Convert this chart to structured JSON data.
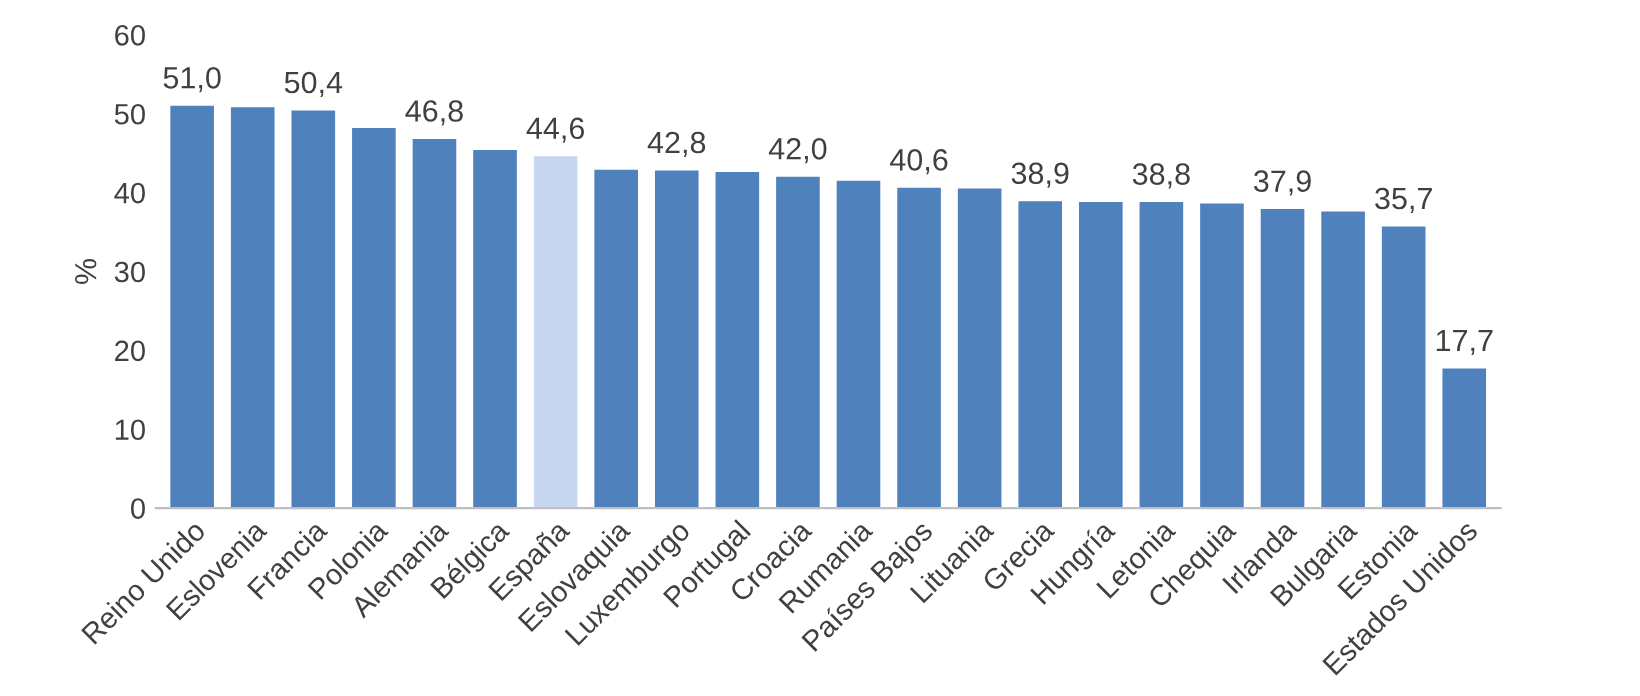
{
  "chart_data": {
    "type": "bar",
    "ylabel": "%",
    "categories": [
      "Reino Unido",
      "Eslovenia",
      "Francia",
      "Polonia",
      "Alemania",
      "Bélgica",
      "España",
      "Eslovaquia",
      "Luxemburgo",
      "Portugal",
      "Croacia",
      "Rumania",
      "Países Bajos",
      "Lituania",
      "Grecia",
      "Hungría",
      "Letonia",
      "Chequia",
      "Irlanda",
      "Bulgaria",
      "Estonia",
      "Estados Unidos"
    ],
    "values": [
      51.0,
      50.8,
      50.4,
      48.2,
      46.8,
      45.4,
      44.6,
      42.9,
      42.8,
      42.6,
      42.0,
      41.5,
      40.6,
      40.5,
      38.9,
      38.8,
      38.8,
      38.6,
      37.9,
      37.6,
      35.7,
      17.7
    ],
    "value_labels": [
      "51,0",
      null,
      "50,4",
      null,
      "46,8",
      null,
      "44,6",
      null,
      "42,8",
      null,
      "42,0",
      null,
      "40,6",
      null,
      "38,9",
      null,
      "38,8",
      null,
      "37,9",
      null,
      "35,7",
      "17,7"
    ],
    "colors": [
      "#4f81bd",
      "#4f81bd",
      "#4f81bd",
      "#4f81bd",
      "#4f81bd",
      "#4f81bd",
      "#c6d7ef",
      "#4f81bd",
      "#4f81bd",
      "#4f81bd",
      "#4f81bd",
      "#4f81bd",
      "#4f81bd",
      "#4f81bd",
      "#4f81bd",
      "#4f81bd",
      "#4f81bd",
      "#4f81bd",
      "#4f81bd",
      "#4f81bd",
      "#4f81bd",
      "#4f81bd"
    ],
    "ylim": [
      0,
      60
    ],
    "yticks": [
      0,
      10,
      20,
      30,
      40,
      50,
      60
    ],
    "grid": false,
    "legend": false
  }
}
